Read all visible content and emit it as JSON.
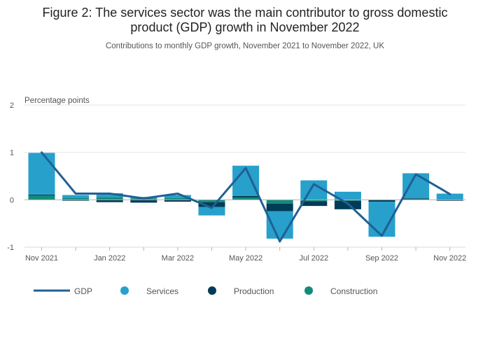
{
  "chart_data": {
    "type": "bar",
    "title": "Figure 2: The services sector was the main contributor to gross domestic product (GDP) growth in November 2022",
    "title_lines": [
      "Figure 2: The services sector was the main contributor to gross domestic",
      "product (GDP) growth in November 2022"
    ],
    "subtitle": "Contributions to monthly GDP growth, November 2021 to November 2022, UK",
    "ylabel": "Percentage points",
    "ylim": [
      -1,
      2
    ],
    "yticks": [
      2,
      1,
      0,
      -1
    ],
    "categories": [
      "Nov 2021",
      "Dec 2021",
      "Jan 2022",
      "Feb 2022",
      "Mar 2022",
      "Apr 2022",
      "May 2022",
      "Jun 2022",
      "Jul 2022",
      "Aug 2022",
      "Sep 2022",
      "Oct 2022",
      "Nov 2022"
    ],
    "xtick_labels": [
      "Nov 2021",
      "",
      "Jan 2022",
      "",
      "Mar 2022",
      "",
      "May 2022",
      "",
      "Jul 2022",
      "",
      "Sep 2022",
      "",
      "Nov 2022"
    ],
    "series": [
      {
        "name": "Services",
        "kind": "bar",
        "color": "#27a0cc",
        "values": [
          0.88,
          0.06,
          0.08,
          0.03,
          0.06,
          -0.18,
          0.64,
          -0.58,
          0.41,
          0.17,
          -0.74,
          0.53,
          0.13
        ]
      },
      {
        "name": "Production",
        "kind": "bar",
        "color": "#003c57",
        "values": [
          0.02,
          -0.02,
          -0.05,
          -0.06,
          -0.04,
          -0.1,
          0.03,
          -0.16,
          -0.1,
          -0.18,
          -0.03,
          0.02,
          -0.02
        ]
      },
      {
        "name": "Construction",
        "kind": "bar",
        "color": "#118c7b",
        "values": [
          0.09,
          0.04,
          0.06,
          0.03,
          0.04,
          -0.05,
          0.05,
          -0.08,
          -0.03,
          -0.02,
          -0.01,
          0.01,
          0.0
        ]
      },
      {
        "name": "GDP",
        "kind": "line",
        "color": "#206095",
        "values": [
          1.0,
          0.13,
          0.13,
          0.03,
          0.13,
          -0.17,
          0.67,
          -0.88,
          0.33,
          -0.08,
          -0.76,
          0.54,
          0.12
        ]
      }
    ],
    "legend": [
      {
        "name": "GDP",
        "marker": "line",
        "color": "#206095"
      },
      {
        "name": "Services",
        "marker": "dot",
        "color": "#27a0cc"
      },
      {
        "name": "Production",
        "marker": "dot",
        "color": "#003c57"
      },
      {
        "name": "Construction",
        "marker": "dot",
        "color": "#118c7b"
      }
    ],
    "legend_position": "bottom",
    "grid": true
  }
}
